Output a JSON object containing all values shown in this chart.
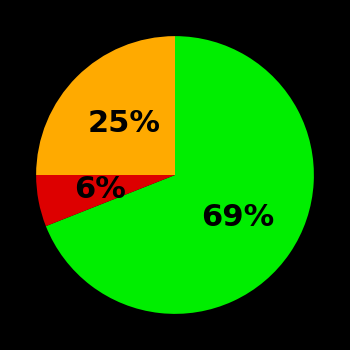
{
  "slices": [
    69,
    6,
    25
  ],
  "labels": [
    "69%",
    "6%",
    "25%"
  ],
  "colors": [
    "#00ee00",
    "#dd0000",
    "#ffaa00"
  ],
  "background_color": "#000000",
  "startangle": 90,
  "figsize": [
    3.5,
    3.5
  ],
  "dpi": 100,
  "label_fontsize": 22,
  "label_fontweight": "bold",
  "label_radii": [
    0.55,
    0.55,
    0.52
  ]
}
